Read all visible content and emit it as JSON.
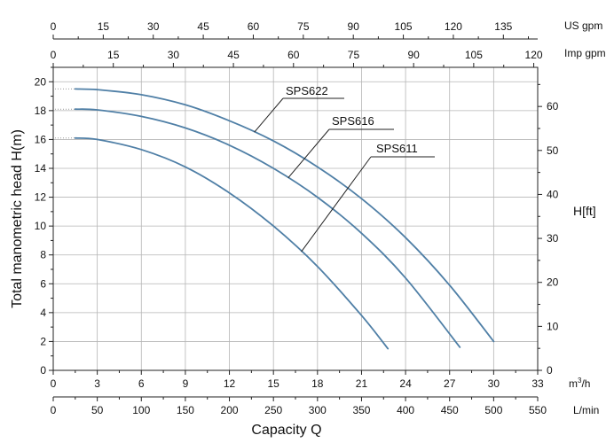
{
  "chart_data": {
    "type": "line",
    "xlabel": "Capacity Q",
    "ylabel": "Total manometric head H(m)",
    "y2label": "H[ft]",
    "x_unit_primary": "m³/h",
    "x_unit_secondary": "L/min",
    "x_unit_top_inner": "Imp gpm",
    "x_unit_top_outer": "US gpm",
    "xlim": [
      0,
      33
    ],
    "ylim": [
      0,
      21
    ],
    "x_ticks_m3h": [
      0,
      3,
      6,
      9,
      12,
      15,
      18,
      21,
      24,
      27,
      30,
      33
    ],
    "x_ticks_lmin": [
      0,
      50,
      100,
      150,
      200,
      250,
      300,
      350,
      400,
      450,
      500,
      550
    ],
    "x_ticks_impgpm": [
      0,
      15,
      30,
      45,
      60,
      75,
      90,
      105,
      120
    ],
    "x_ticks_usgpm": [
      0,
      15,
      30,
      45,
      60,
      75,
      90,
      105,
      120,
      135
    ],
    "y_ticks_m": [
      0,
      2,
      4,
      6,
      8,
      10,
      12,
      14,
      16,
      18,
      20
    ],
    "y_ticks_ft": [
      0,
      10,
      20,
      30,
      40,
      50,
      60
    ],
    "grid": true,
    "series": [
      {
        "name": "SPS622",
        "color": "#4f7fa6",
        "x": [
          1.5,
          3,
          6,
          9,
          12,
          15,
          18,
          21,
          24,
          27,
          30
        ],
        "y": [
          19.5,
          19.45,
          19.1,
          18.4,
          17.3,
          15.9,
          14.1,
          11.9,
          9.2,
          5.9,
          2.0
        ]
      },
      {
        "name": "SPS616",
        "color": "#4f7fa6",
        "x": [
          1.5,
          3,
          6,
          9,
          12,
          15,
          18,
          21,
          24,
          27.7
        ],
        "y": [
          18.1,
          18.05,
          17.6,
          16.8,
          15.6,
          14.0,
          12.0,
          9.5,
          6.4,
          1.6
        ]
      },
      {
        "name": "SPS611",
        "color": "#4f7fa6",
        "x": [
          1.5,
          3,
          6,
          9,
          12,
          15,
          18,
          21,
          22.8
        ],
        "y": [
          16.1,
          16.0,
          15.3,
          14.1,
          12.3,
          10.0,
          7.2,
          3.8,
          1.5
        ]
      }
    ]
  }
}
